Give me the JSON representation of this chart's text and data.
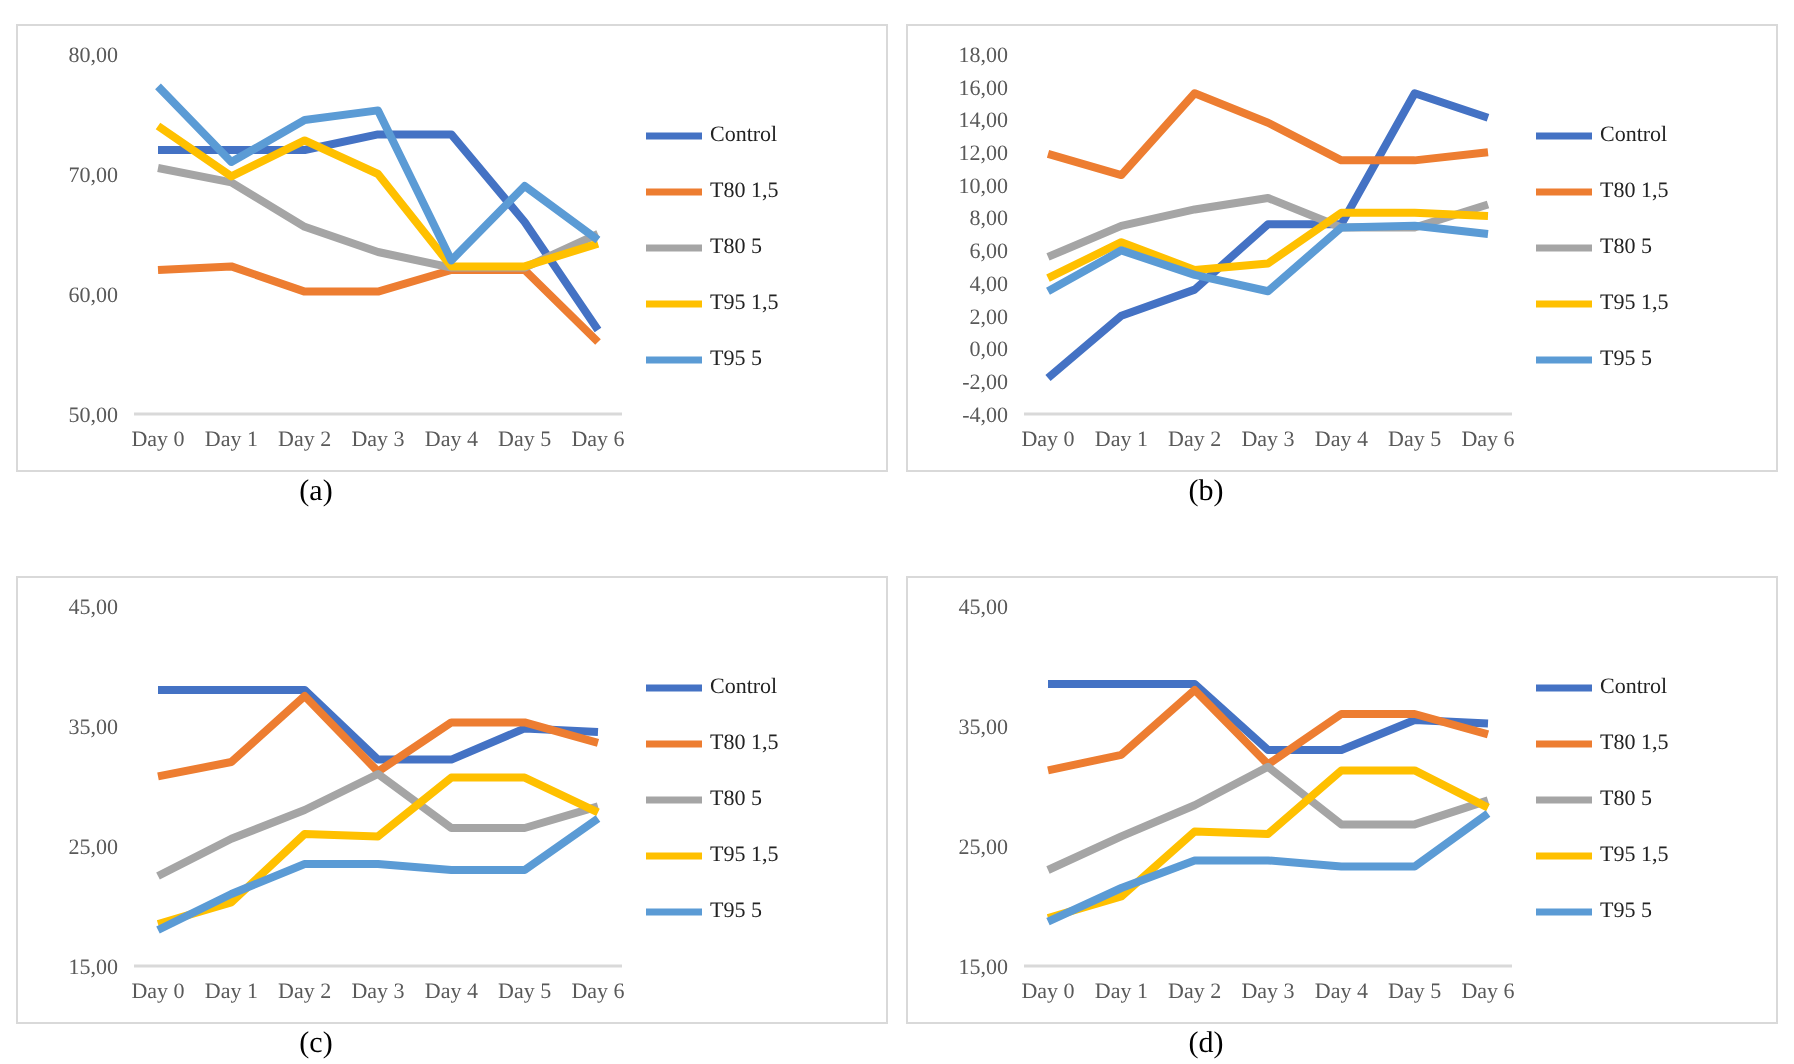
{
  "chart_data": [
    {
      "type": "line",
      "categories": [
        "Day 0",
        "Day 1",
        "Day 2",
        "Day 3",
        "Day 4",
        "Day 5",
        "Day 6"
      ],
      "ylim": [
        50,
        80
      ],
      "yticks": [
        {
          "value": 50,
          "label": "50,00"
        },
        {
          "value": 60,
          "label": "60,00"
        },
        {
          "value": 70,
          "label": "70,00"
        },
        {
          "value": 80,
          "label": "80,00"
        }
      ],
      "grid": false,
      "legend": "right",
      "marker": "none",
      "annotations": [
        "(a)"
      ],
      "series": [
        {
          "name": "Control",
          "color": "#4472c4",
          "values": [
            72,
            72,
            72,
            73.3,
            73.3,
            66,
            57
          ]
        },
        {
          "name": "T80 1,5",
          "color": "#ed7d31",
          "values": [
            62,
            62.3,
            60.2,
            60.2,
            62,
            62,
            56
          ]
        },
        {
          "name": "T80 5",
          "color": "#a5a5a5",
          "values": [
            70.5,
            69.3,
            65.6,
            63.5,
            62.2,
            62.2,
            65
          ]
        },
        {
          "name": "T95 1,5",
          "color": "#ffc000",
          "values": [
            74,
            69.8,
            72.8,
            70,
            62.3,
            62.3,
            64.2
          ]
        },
        {
          "name": "T95 5",
          "color": "#5b9bd5",
          "values": [
            77.3,
            71,
            74.5,
            75.3,
            62.8,
            69,
            64.5
          ]
        }
      ]
    },
    {
      "type": "line",
      "categories": [
        "Day 0",
        "Day 1",
        "Day 2",
        "Day 3",
        "Day 4",
        "Day 5",
        "Day 6"
      ],
      "ylim": [
        -4,
        18
      ],
      "yticks": [
        {
          "value": -4,
          "label": "-4,00"
        },
        {
          "value": -2,
          "label": "-2,00"
        },
        {
          "value": 0,
          "label": "0,00"
        },
        {
          "value": 2,
          "label": "2,00"
        },
        {
          "value": 4,
          "label": "4,00"
        },
        {
          "value": 6,
          "label": "6,00"
        },
        {
          "value": 8,
          "label": "8,00"
        },
        {
          "value": 10,
          "label": "10,00"
        },
        {
          "value": 12,
          "label": "12,00"
        },
        {
          "value": 14,
          "label": "14,00"
        },
        {
          "value": 16,
          "label": "16,00"
        },
        {
          "value": 18,
          "label": "18,00"
        }
      ],
      "grid": false,
      "legend": "right",
      "marker": "none",
      "annotations": [
        "(b)"
      ],
      "series": [
        {
          "name": "Control",
          "color": "#4472c4",
          "values": [
            -1.8,
            2,
            3.6,
            7.6,
            7.6,
            15.6,
            14.1
          ]
        },
        {
          "name": "T80 1,5",
          "color": "#ed7d31",
          "values": [
            11.9,
            10.6,
            15.6,
            13.8,
            11.5,
            11.5,
            12
          ]
        },
        {
          "name": "T80 5",
          "color": "#a5a5a5",
          "values": [
            5.6,
            7.5,
            8.5,
            9.2,
            7.4,
            7.4,
            8.8
          ]
        },
        {
          "name": "T95 1,5",
          "color": "#ffc000",
          "values": [
            4.3,
            6.5,
            4.8,
            5.2,
            8.3,
            8.3,
            8.1
          ]
        },
        {
          "name": "T95 5",
          "color": "#5b9bd5",
          "values": [
            3.5,
            6,
            4.5,
            3.5,
            7.4,
            7.5,
            7
          ]
        }
      ]
    },
    {
      "type": "line",
      "categories": [
        "Day 0",
        "Day 1",
        "Day 2",
        "Day 3",
        "Day 4",
        "Day 5",
        "Day 6"
      ],
      "ylim": [
        15,
        45
      ],
      "yticks": [
        {
          "value": 15,
          "label": "15,00"
        },
        {
          "value": 25,
          "label": "25,00"
        },
        {
          "value": 35,
          "label": "35,00"
        },
        {
          "value": 45,
          "label": "45,00"
        }
      ],
      "grid": false,
      "legend": "right",
      "marker": "none",
      "annotations": [
        "(c)"
      ],
      "series": [
        {
          "name": "Control",
          "color": "#4472c4",
          "values": [
            38,
            38,
            38,
            32.2,
            32.2,
            34.8,
            34.5
          ]
        },
        {
          "name": "T80 1,5",
          "color": "#ed7d31",
          "values": [
            30.8,
            32,
            37.5,
            31.2,
            35.3,
            35.3,
            33.6
          ]
        },
        {
          "name": "T80 5",
          "color": "#a5a5a5",
          "values": [
            22.5,
            25.6,
            28,
            31,
            26.5,
            26.5,
            28.3
          ]
        },
        {
          "name": "T95 1,5",
          "color": "#ffc000",
          "values": [
            18.5,
            20.3,
            26,
            25.8,
            30.7,
            30.7,
            27.8
          ]
        },
        {
          "name": "T95 5",
          "color": "#5b9bd5",
          "values": [
            18,
            21,
            23.5,
            23.5,
            23,
            23,
            27.3
          ]
        }
      ]
    },
    {
      "type": "line",
      "categories": [
        "Day 0",
        "Day 1",
        "Day 2",
        "Day 3",
        "Day 4",
        "Day 5",
        "Day 6"
      ],
      "ylim": [
        15,
        45
      ],
      "yticks": [
        {
          "value": 15,
          "label": "15,00"
        },
        {
          "value": 25,
          "label": "25,00"
        },
        {
          "value": 35,
          "label": "35,00"
        },
        {
          "value": 45,
          "label": "45,00"
        }
      ],
      "grid": false,
      "legend": "right",
      "marker": "none",
      "annotations": [
        "(d)"
      ],
      "series": [
        {
          "name": "Control",
          "color": "#4472c4",
          "values": [
            38.5,
            38.5,
            38.5,
            33,
            33,
            35.5,
            35.2
          ]
        },
        {
          "name": "T80 1,5",
          "color": "#ed7d31",
          "values": [
            31.3,
            32.6,
            38,
            31.8,
            36,
            36,
            34.3
          ]
        },
        {
          "name": "T80 5",
          "color": "#a5a5a5",
          "values": [
            23,
            25.8,
            28.4,
            31.6,
            26.8,
            26.8,
            28.8
          ]
        },
        {
          "name": "T95 1,5",
          "color": "#ffc000",
          "values": [
            19,
            20.8,
            26.2,
            26,
            31.3,
            31.3,
            28.2
          ]
        },
        {
          "name": "T95 5",
          "color": "#5b9bd5",
          "values": [
            18.7,
            21.5,
            23.8,
            23.8,
            23.3,
            23.3,
            27.7
          ]
        }
      ]
    }
  ]
}
